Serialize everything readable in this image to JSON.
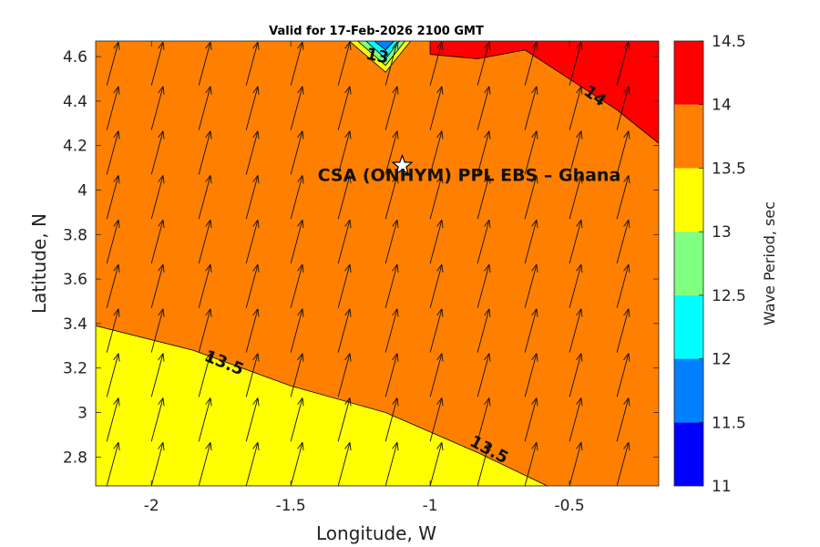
{
  "chart_data": {
    "type": "contour",
    "title": "Valid for 17-Feb-2026 2100 GMT",
    "xlabel": "Longitude, W",
    "ylabel": "Latitude, N",
    "xlim": [
      -2.2,
      -0.18
    ],
    "ylim": [
      2.67,
      4.67
    ],
    "xticks": [
      -2,
      -1.5,
      -1,
      -0.5
    ],
    "xtick_labels": [
      "-2",
      "-1.5",
      "-1",
      "-0.5"
    ],
    "yticks": [
      2.8,
      3,
      3.2,
      3.4,
      3.6,
      3.8,
      4,
      4.2,
      4.4,
      4.6
    ],
    "ytick_labels": [
      "2.8",
      "3",
      "3.2",
      "3.4",
      "3.6",
      "3.8",
      "4",
      "4.2",
      "4.4",
      "4.6"
    ],
    "colorbar": {
      "label": "Wave Period, sec",
      "levels": [
        11,
        11.5,
        12,
        12.5,
        13,
        13.5,
        14,
        14.5
      ],
      "level_labels": [
        "11",
        "11.5",
        "12",
        "12.5",
        "13",
        "13.5",
        "14",
        "14.5"
      ],
      "colors": [
        "#0000ff",
        "#0080ff",
        "#00ffff",
        "#80ff80",
        "#ffff00",
        "#ff8000",
        "#ff0000"
      ]
    },
    "regions": [
      {
        "name": "13.5-14 sec",
        "color": "#ff8000",
        "polygon": [
          [
            -2.2,
            2.67
          ],
          [
            -0.18,
            2.67
          ],
          [
            -0.18,
            4.67
          ],
          [
            -2.2,
            4.67
          ]
        ]
      },
      {
        "name": "13-13.5 sec",
        "color": "#ffff00",
        "polygon": [
          [
            -2.2,
            2.67
          ],
          [
            -2.2,
            3.39
          ],
          [
            -1.85,
            3.28
          ],
          [
            -1.5,
            3.12
          ],
          [
            -1.16,
            3.0
          ],
          [
            -0.83,
            2.82
          ],
          [
            -0.58,
            2.67
          ]
        ]
      },
      {
        "name": "14-14.5 sec",
        "color": "#ff0000",
        "polygon": [
          [
            -1.0,
            4.67
          ],
          [
            -0.18,
            4.67
          ],
          [
            -0.18,
            4.21
          ],
          [
            -0.33,
            4.36
          ],
          [
            -0.66,
            4.63
          ],
          [
            -0.83,
            4.59
          ],
          [
            -1.0,
            4.61
          ]
        ]
      },
      {
        "name": "13-13.5 sec wedge",
        "color": "#ffff00",
        "polygon": [
          [
            -1.29,
            4.67
          ],
          [
            -1.07,
            4.67
          ],
          [
            -1.16,
            4.53
          ]
        ]
      },
      {
        "name": "12.5-13 sec wedge",
        "color": "#80ff80",
        "polygon": [
          [
            -1.26,
            4.67
          ],
          [
            -1.09,
            4.67
          ],
          [
            -1.16,
            4.56
          ]
        ]
      },
      {
        "name": "12-12.5 sec wedge",
        "color": "#00ffff",
        "polygon": [
          [
            -1.23,
            4.67
          ],
          [
            -1.11,
            4.67
          ],
          [
            -1.16,
            4.59
          ]
        ]
      },
      {
        "name": "11.5-12 sec wedge",
        "color": "#0080ff",
        "polygon": [
          [
            -1.2,
            4.67
          ],
          [
            -1.13,
            4.67
          ],
          [
            -1.16,
            4.63
          ]
        ]
      }
    ],
    "contour_labels": [
      {
        "text": "13",
        "x": -1.19,
        "y": 4.6,
        "rotate": 12
      },
      {
        "text": "14",
        "x": -0.41,
        "y": 4.42,
        "rotate": 36
      },
      {
        "text": "13.5",
        "x": -1.74,
        "y": 3.22,
        "rotate": 22
      },
      {
        "text": "13.5",
        "x": -0.79,
        "y": 2.83,
        "rotate": 28
      }
    ],
    "vectors": {
      "x": [
        -2.16,
        -2.0,
        -1.83,
        -1.66,
        -1.5,
        -1.33,
        -1.16,
        -1.0,
        -0.83,
        -0.66,
        -0.5,
        -0.33
      ],
      "y": [
        2.67,
        2.87,
        3.07,
        3.27,
        3.47,
        3.67,
        3.87,
        4.07,
        4.27,
        4.47,
        4.67
      ],
      "direction_deg_from_north": 15,
      "length_deg": 0.18
    },
    "marker": {
      "type": "star",
      "x": -1.1,
      "y": 4.11
    },
    "annotation": {
      "text": "CSA (ONHYM) PPL EBS  – Ghana",
      "x": -0.86,
      "y": 4.04
    }
  }
}
